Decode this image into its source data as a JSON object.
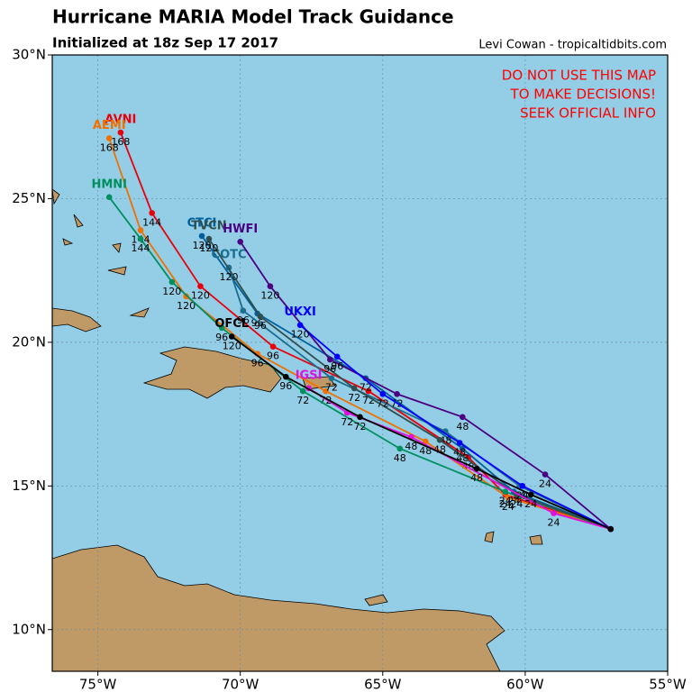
{
  "title": "Hurricane MARIA Model Track Guidance",
  "subtitle": "Initialized at 18z Sep 17 2017",
  "credit": "Levi Cowan - tropicaltidbits.com",
  "warning": [
    "DO NOT USE THIS MAP",
    "TO MAKE DECISIONS!",
    "SEEK OFFICIAL INFO"
  ],
  "map": {
    "xlim": [
      -76.6,
      -55.0
    ],
    "ylim": [
      8.55,
      30
    ],
    "xticks": [
      {
        "value": -75,
        "label": "75°W"
      },
      {
        "value": -70,
        "label": "70°W"
      },
      {
        "value": -65,
        "label": "65°W"
      },
      {
        "value": -60,
        "label": "60°W"
      },
      {
        "value": -55,
        "label": "55°W"
      }
    ],
    "yticks": [
      {
        "value": 10,
        "label": "10°N"
      },
      {
        "value": 15,
        "label": "15°N"
      },
      {
        "value": 20,
        "label": "20°N"
      },
      {
        "value": 25,
        "label": "25°N"
      },
      {
        "value": 30,
        "label": "30°N"
      }
    ],
    "grid": true
  },
  "tracks": [
    {
      "name": "AVNI",
      "color": "#e8000b",
      "points": [
        {
          "lon": -57.0,
          "lat": 13.5
        },
        {
          "lon": -60.7,
          "lat": 14.7,
          "label": "24"
        },
        {
          "lon": -62.0,
          "lat": 16.0,
          "label": "48"
        },
        {
          "lon": -65.5,
          "lat": 18.3,
          "label": "72"
        },
        {
          "lon": -68.85,
          "lat": 19.85,
          "label": "96"
        },
        {
          "lon": -71.4,
          "lat": 21.95,
          "label": "120"
        },
        {
          "lon": -73.1,
          "lat": 24.5,
          "label": "144"
        },
        {
          "lon": -74.2,
          "lat": 27.3,
          "label": "168"
        }
      ]
    },
    {
      "name": "AEMI",
      "color": "#f07000",
      "points": [
        {
          "lon": -57.0,
          "lat": 13.5
        },
        {
          "lon": -60.6,
          "lat": 14.6,
          "label": "24"
        },
        {
          "lon": -63.5,
          "lat": 16.55,
          "label": "48"
        },
        {
          "lon": -67.0,
          "lat": 18.3,
          "label": "72"
        },
        {
          "lon": -69.4,
          "lat": 19.6,
          "label": "96"
        },
        {
          "lon": -71.9,
          "lat": 21.6,
          "label": "120"
        },
        {
          "lon": -73.5,
          "lat": 23.9,
          "label": "144"
        },
        {
          "lon": -74.6,
          "lat": 27.1,
          "label": "168"
        }
      ]
    },
    {
      "name": "HMNI",
      "color": "#009060",
      "points": [
        {
          "lon": -57.0,
          "lat": 13.5
        },
        {
          "lon": -60.7,
          "lat": 14.8,
          "label": "24"
        },
        {
          "lon": -64.4,
          "lat": 16.3,
          "label": "48"
        },
        {
          "lon": -67.8,
          "lat": 18.3,
          "label": "72"
        },
        {
          "lon": -70.65,
          "lat": 20.5,
          "label": "96"
        },
        {
          "lon": -72.4,
          "lat": 22.1,
          "label": "120"
        },
        {
          "lon": -73.5,
          "lat": 23.6,
          "label": "144"
        },
        {
          "lon": -74.6,
          "lat": 25.05
        }
      ]
    },
    {
      "name": "CTCI",
      "color": "#00609c",
      "points": [
        {
          "lon": -57.0,
          "lat": 13.5
        },
        {
          "lon": -60.4,
          "lat": 14.8,
          "label": "24"
        },
        {
          "lon": -62.2,
          "lat": 16.3,
          "label": "48"
        },
        {
          "lon": -65.6,
          "lat": 18.75,
          "label": "72"
        },
        {
          "lon": -69.4,
          "lat": 21.0,
          "label": "96"
        },
        {
          "lon": -71.35,
          "lat": 23.7,
          "label": "120"
        }
      ]
    },
    {
      "name": "COTC",
      "color": "#1a6e8e",
      "points": [
        {
          "lon": -57.0,
          "lat": 13.5
        },
        {
          "lon": -60.2,
          "lat": 15.0,
          "label": "24"
        },
        {
          "lon": -62.8,
          "lat": 16.9,
          "label": "48"
        },
        {
          "lon": -66.8,
          "lat": 18.75,
          "label": "72"
        },
        {
          "lon": -69.9,
          "lat": 21.1,
          "label": "96"
        },
        {
          "lon": -70.4,
          "lat": 22.6,
          "label": "120"
        }
      ]
    },
    {
      "name": "TVCN",
      "color": "#2f4f4f",
      "points": [
        {
          "lon": -57.0,
          "lat": 13.5
        },
        {
          "lon": -60.3,
          "lat": 14.7,
          "label": "24"
        },
        {
          "lon": -63.0,
          "lat": 16.6,
          "label": "48"
        },
        {
          "lon": -66.0,
          "lat": 18.4,
          "label": "72"
        },
        {
          "lon": -69.3,
          "lat": 20.9,
          "label": "96"
        },
        {
          "lon": -71.1,
          "lat": 23.6,
          "label": "120"
        }
      ]
    },
    {
      "name": "HWFI",
      "color": "#4b0082",
      "points": [
        {
          "lon": -57.0,
          "lat": 13.5
        },
        {
          "lon": -59.3,
          "lat": 15.4,
          "label": "24"
        },
        {
          "lon": -62.2,
          "lat": 17.4,
          "label": "48"
        },
        {
          "lon": -64.5,
          "lat": 18.2,
          "label": "72"
        },
        {
          "lon": -66.85,
          "lat": 19.4,
          "label": "96"
        },
        {
          "lon": -68.95,
          "lat": 21.95,
          "label": "120"
        },
        {
          "lon": -70.0,
          "lat": 23.5
        }
      ]
    },
    {
      "name": "UKXI",
      "color": "#0000ff",
      "points": [
        {
          "lon": -57.0,
          "lat": 13.5
        },
        {
          "lon": -60.1,
          "lat": 15.0,
          "label": "24"
        },
        {
          "lon": -62.3,
          "lat": 16.5,
          "label": "48"
        },
        {
          "lon": -65.0,
          "lat": 18.2,
          "label": "72"
        },
        {
          "lon": -66.6,
          "lat": 19.5,
          "label": "96"
        },
        {
          "lon": -67.9,
          "lat": 20.6,
          "label": "120"
        }
      ]
    },
    {
      "name": "IGSI",
      "color": "#e010e0",
      "points": [
        {
          "lon": -57.0,
          "lat": 13.5
        },
        {
          "lon": -59.0,
          "lat": 14.05,
          "label": "24"
        },
        {
          "lon": -64.0,
          "lat": 16.7,
          "label": "48"
        },
        {
          "lon": -66.25,
          "lat": 17.55,
          "label": "72"
        },
        {
          "lon": -67.6,
          "lat": 18.4
        }
      ]
    },
    {
      "name": "OFCL",
      "color": "#000000",
      "points": [
        {
          "lon": -57.0,
          "lat": 13.5
        },
        {
          "lon": -59.8,
          "lat": 14.7,
          "label": "24"
        },
        {
          "lon": -61.7,
          "lat": 15.6,
          "label": "48"
        },
        {
          "lon": -65.8,
          "lat": 17.4,
          "label": "72"
        },
        {
          "lon": -68.4,
          "lat": 18.8,
          "label": "96"
        },
        {
          "lon": -70.3,
          "lat": 20.2,
          "label": "120"
        }
      ]
    }
  ]
}
